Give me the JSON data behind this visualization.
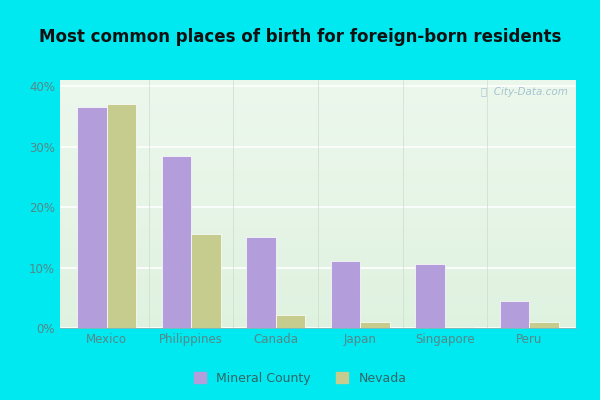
{
  "title": "Most common places of birth for foreign-born residents",
  "categories": [
    "Mexico",
    "Philippines",
    "Canada",
    "Japan",
    "Singapore",
    "Peru"
  ],
  "mineral_county": [
    36.5,
    28.5,
    15.0,
    11.0,
    10.5,
    4.5
  ],
  "nevada": [
    37.0,
    15.5,
    2.2,
    1.0,
    0.2,
    1.0
  ],
  "bar_color_mineral": "#b39ddb",
  "bar_color_nevada": "#c5cc8e",
  "bg_outer": "#00e8f0",
  "ylabel_ticks": [
    "0%",
    "10%",
    "20%",
    "30%",
    "40%"
  ],
  "yticks": [
    0,
    10,
    20,
    30,
    40
  ],
  "ylim": [
    0,
    41
  ],
  "legend_labels": [
    "Mineral County",
    "Nevada"
  ],
  "watermark": "ⓘ  City-Data.com",
  "bar_width": 0.35,
  "title_fontsize": 12,
  "tick_fontsize": 8.5
}
